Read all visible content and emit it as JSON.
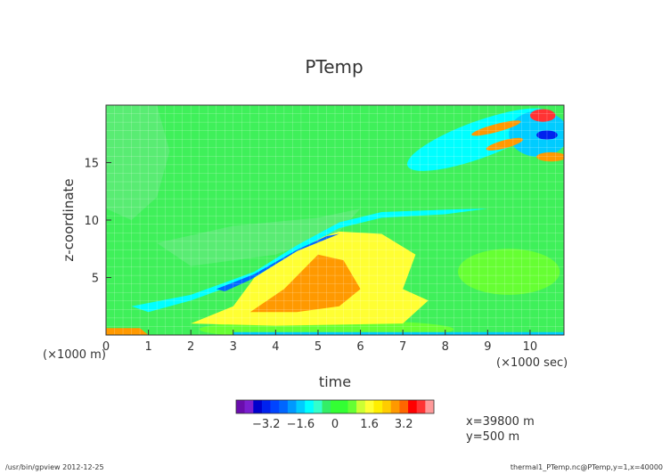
{
  "chart_data": {
    "type": "heatmap",
    "title": "PTemp",
    "xlabel": "time",
    "ylabel": "z-coordinate",
    "x_scale_note": "(×1000 sec)",
    "y_scale_note": "(×1000 m)",
    "xlim": [
      0,
      10.8
    ],
    "ylim": [
      0,
      20
    ],
    "x_ticks": [
      "0",
      "1",
      "2",
      "3",
      "4",
      "5",
      "6",
      "7",
      "8",
      "9",
      "10"
    ],
    "y_ticks": [
      "5",
      "10",
      "15"
    ],
    "grid": true,
    "colorbar": {
      "levels": [
        -4.4,
        -4.0,
        -3.6,
        -3.2,
        -2.8,
        -2.4,
        -2.0,
        -1.6,
        -1.2,
        -0.8,
        -0.4,
        0.0,
        0.4,
        0.8,
        1.2,
        1.6,
        2.0,
        2.4,
        2.8,
        3.2,
        3.6,
        4.0,
        4.4
      ],
      "colors": [
        "#6a0dad",
        "#7a1fd0",
        "#0000cc",
        "#0022ee",
        "#0044ff",
        "#0066ff",
        "#0099ff",
        "#00ccff",
        "#00ffff",
        "#33ffcc",
        "#33ee66",
        "#33ff33",
        "#33ff33",
        "#66ff33",
        "#ccff33",
        "#ffff33",
        "#ffee00",
        "#ffcc00",
        "#ff9900",
        "#ff6600",
        "#ff0000",
        "#ff3333",
        "#ff9999"
      ],
      "tick_labels": [
        "−3.2",
        "−1.6",
        "0",
        "1.6",
        "3.2"
      ]
    },
    "info": [
      "x=39800 m",
      "y=500 m"
    ],
    "footer_left": "/usr/bin/gpview  2012-12-25",
    "footer_right": "thermal1_PTemp.nc@PTemp,y=1,x=40000"
  }
}
